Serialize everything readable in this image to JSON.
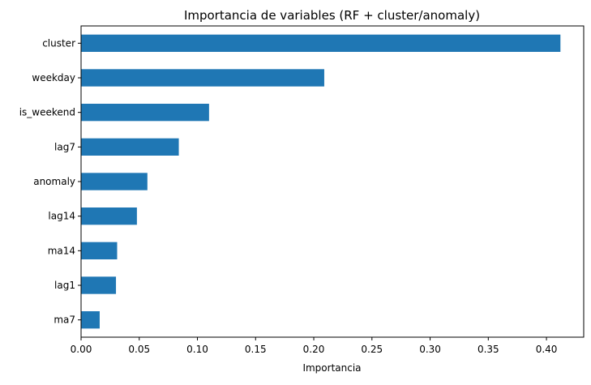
{
  "chart_data": {
    "type": "bar",
    "orientation": "horizontal",
    "title": "Importancia de variables (RF + cluster/anomaly)",
    "xlabel": "Importancia",
    "ylabel": "",
    "categories": [
      "cluster",
      "weekday",
      "is_weekend",
      "lag7",
      "anomaly",
      "lag14",
      "ma14",
      "lag1",
      "ma7"
    ],
    "values": [
      0.412,
      0.209,
      0.11,
      0.084,
      0.057,
      0.048,
      0.031,
      0.03,
      0.016
    ],
    "xlim": [
      0.0,
      0.432
    ],
    "xticks": [
      0.0,
      0.05,
      0.1,
      0.15,
      0.2,
      0.25,
      0.3,
      0.35,
      0.4
    ],
    "xtick_labels": [
      "0.00",
      "0.05",
      "0.10",
      "0.15",
      "0.20",
      "0.25",
      "0.30",
      "0.35",
      "0.40"
    ],
    "bar_color": "#1f77b4",
    "grid": false,
    "legend": "none"
  }
}
